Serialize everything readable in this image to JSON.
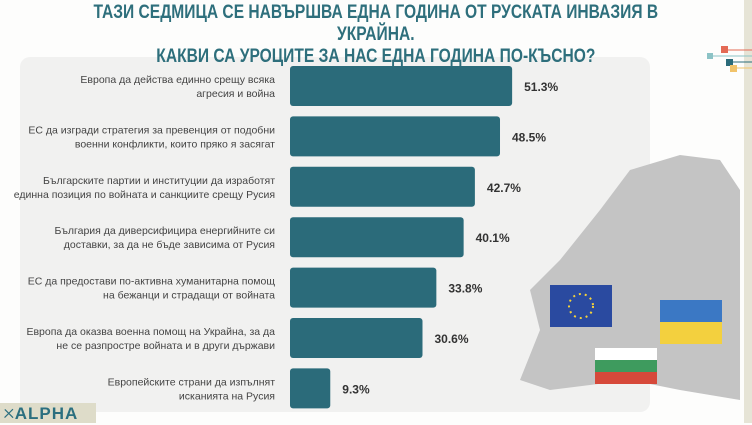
{
  "title": {
    "line1": "ТАЗИ СЕДМИЦА СЕ НАВЪРШВА ЕДНА ГОДИНА ОТ РУСКАТА ИНВАЗИЯ В УКРАЙНА.",
    "line2": "КАКВИ СА УРОЦИТЕ ЗА НАС ЕДНА ГОДИНА ПО-КЪСНО?"
  },
  "logo": "ALPHA",
  "colors": {
    "bar": "#2b6b7a",
    "title": "#2e6f7c",
    "map": "#c4c4c4"
  },
  "chart_data": {
    "type": "bar",
    "orientation": "horizontal",
    "categories": [
      [
        "Европа да действа единно срещу всяка",
        "агресия и война"
      ],
      [
        "ЕС да изгради стратегия за превенция от подобни",
        "военни конфликти, които пряко я засягат"
      ],
      [
        "Българските партии и институции да изработят",
        "единна позиция по войната и санкциите срещу Русия"
      ],
      [
        "България да диверсифицира енергийните си",
        "доставки, за да не бъде зависима от Русия"
      ],
      [
        "ЕС да предостави по-активна хуманитарна помощ",
        "на бежанци и страдащи от войната"
      ],
      [
        "Европа да оказва военна помощ на Украйна, за да",
        "не се разпростре войната и в други държави"
      ],
      [
        "Европейските страни да изпълнят",
        "исканията на Русия"
      ]
    ],
    "values": [
      51.3,
      48.5,
      42.7,
      40.1,
      33.8,
      30.6,
      9.3
    ],
    "labels": [
      "51.3%",
      "48.5%",
      "42.7%",
      "40.1%",
      "33.8%",
      "30.6%",
      "9.3%"
    ],
    "unit": "%",
    "grid": false
  }
}
